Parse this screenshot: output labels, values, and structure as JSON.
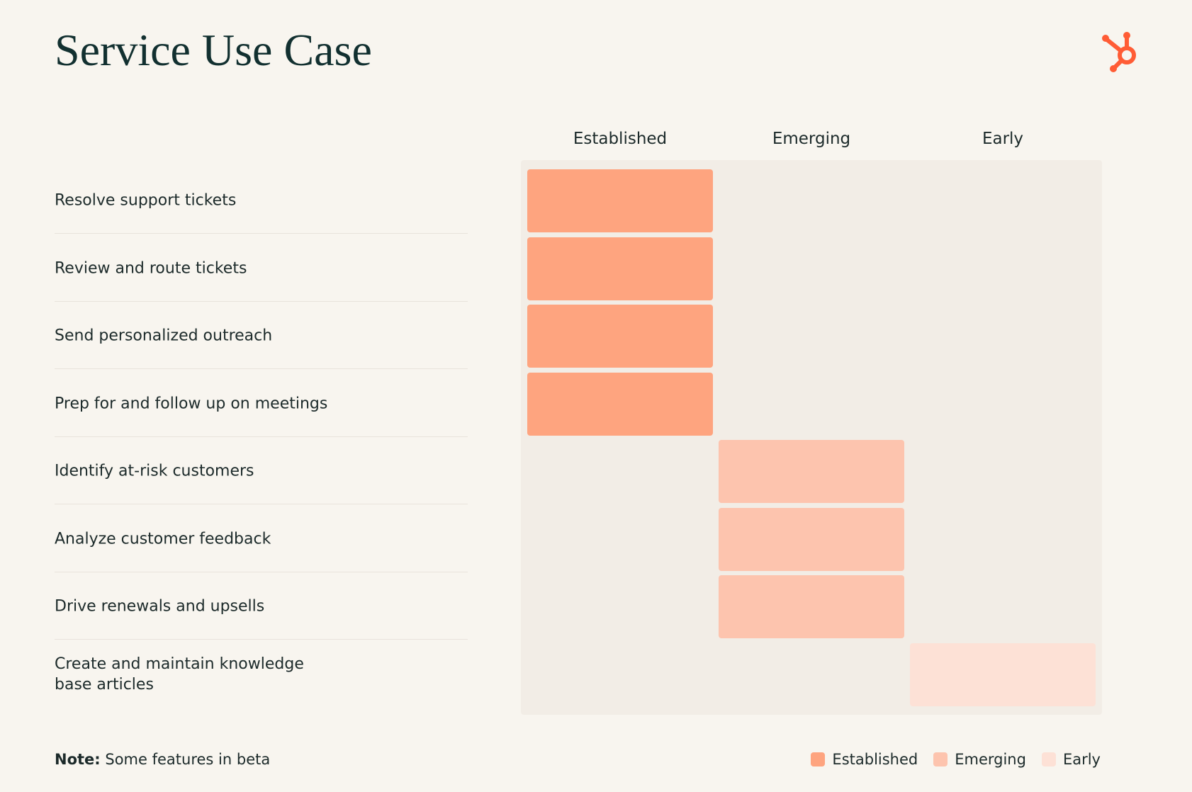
{
  "header": {
    "title": "Service Use Case"
  },
  "columns": [
    "Established",
    "Emerging",
    "Early"
  ],
  "colors": [
    "#fea47f",
    "#fdc4ae",
    "#fde1d6"
  ],
  "rows": [
    {
      "label": "Resolve support tickets",
      "column": 0
    },
    {
      "label": "Review and route tickets",
      "column": 0
    },
    {
      "label": "Send personalized outreach",
      "column": 0
    },
    {
      "label": "Prep for and follow up on meetings",
      "column": 0
    },
    {
      "label": "Identify at-risk customers",
      "column": 1
    },
    {
      "label": "Analyze customer feedback",
      "column": 1
    },
    {
      "label": "Drive renewals and upsells",
      "column": 1
    },
    {
      "label": "Create and maintain knowledge base articles",
      "column": 2
    }
  ],
  "note": {
    "label": "Note:",
    "text": "Some features in beta"
  }
}
